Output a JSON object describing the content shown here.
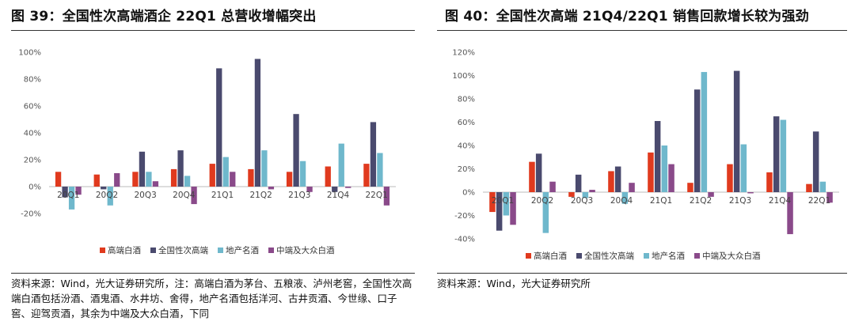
{
  "panels": [
    {
      "title": "图 39：全国性次高端酒企 22Q1 总营收增幅突出",
      "source": "资料来源：Wind，光大证券研究所，注：高端白酒为茅台、五粮液、泸州老窖，全国性次高端白酒包括汾酒、酒鬼酒、水井坊、舍得，地产名酒包括洋河、古井贡酒、今世缘、口子窖、迎驾贡酒，其余为中端及大众白酒，下同"
    },
    {
      "title": "图 40：全国性次高端 21Q4/22Q1 销售回款增长较为强劲",
      "source": "资料来源：Wind，光大证券研究所"
    }
  ],
  "colors": {
    "高端白酒": "#e03a1e",
    "全国性次高端": "#4a4a6e",
    "地产名酒": "#6fb8cc",
    "中端及大众白酒": "#8a4a8a",
    "grid": "#dddddd",
    "axis": "#bbbbbb"
  },
  "chart_data": [
    {
      "type": "bar",
      "categories": [
        "20Q1",
        "20Q2",
        "20Q3",
        "20Q4",
        "21Q1",
        "21Q2",
        "21Q3",
        "21Q4",
        "22Q1"
      ],
      "yticks": [
        "-20%",
        "0%",
        "20%",
        "40%",
        "60%",
        "80%",
        "100%"
      ],
      "ylim": [
        -20,
        100
      ],
      "legend_position": "bottom",
      "series": [
        {
          "name": "高端白酒",
          "values": [
            11,
            9,
            11,
            13,
            17,
            13,
            11,
            15,
            17
          ]
        },
        {
          "name": "全国性次高端",
          "values": [
            -8,
            -2,
            26,
            27,
            88,
            95,
            54,
            -4,
            48
          ]
        },
        {
          "name": "地产名酒",
          "values": [
            -17,
            -14,
            11,
            8,
            22,
            27,
            19,
            32,
            25
          ]
        },
        {
          "name": "中端及大众白酒",
          "values": [
            -6,
            10,
            4,
            -13,
            11,
            -2,
            -4,
            -1,
            -14
          ]
        }
      ]
    },
    {
      "type": "bar",
      "categories": [
        "20Q1",
        "20Q2",
        "20Q3",
        "20Q4",
        "21Q1",
        "21Q2",
        "21Q3",
        "21Q4",
        "22Q1"
      ],
      "yticks": [
        "-40%",
        "-20%",
        "0%",
        "20%",
        "40%",
        "60%",
        "80%",
        "100%",
        "120%"
      ],
      "ylim": [
        -40,
        120
      ],
      "legend_position": "bottom",
      "series": [
        {
          "name": "高端白酒",
          "values": [
            -17,
            26,
            -4,
            18,
            34,
            8,
            24,
            17,
            7
          ]
        },
        {
          "name": "全国性次高端",
          "values": [
            -33,
            33,
            15,
            22,
            61,
            88,
            104,
            65,
            52
          ]
        },
        {
          "name": "地产名酒",
          "values": [
            -20,
            -35,
            -5,
            -10,
            40,
            103,
            41,
            62,
            9
          ]
        },
        {
          "name": "中端及大众白酒",
          "values": [
            -28,
            9,
            2,
            8,
            24,
            -4,
            -1,
            -36,
            -9
          ]
        }
      ]
    }
  ]
}
